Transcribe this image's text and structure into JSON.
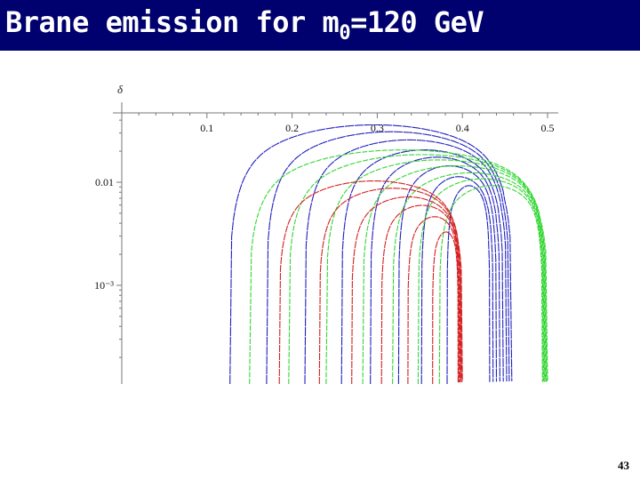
{
  "slide": {
    "title_prefix": "Brane emission for m",
    "title_subscript": "0",
    "title_suffix": "=120 GeV",
    "page_number": "43"
  },
  "colors": {
    "title_bar": "#00006e",
    "blue": "#1f1fbf",
    "green": "#33d633",
    "red": "#d42020"
  },
  "chart_data": {
    "type": "line",
    "ylabel": "δ",
    "y_scale": "log",
    "x_ticks": [
      "0.1",
      "0.2",
      "0.3",
      "0.4",
      "0.5"
    ],
    "y_ticks": [
      "0.01",
      "10⁻³"
    ],
    "grid": false,
    "series": [
      {
        "group": "blue",
        "x_start": 0.127,
        "x_end": 0.458,
        "y_peak": 0.035
      },
      {
        "group": "blue",
        "x_start": 0.17,
        "x_end": 0.455,
        "y_peak": 0.03
      },
      {
        "group": "blue",
        "x_start": 0.215,
        "x_end": 0.452,
        "y_peak": 0.025
      },
      {
        "group": "blue",
        "x_start": 0.258,
        "x_end": 0.448,
        "y_peak": 0.02
      },
      {
        "group": "blue",
        "x_start": 0.292,
        "x_end": 0.444,
        "y_peak": 0.017
      },
      {
        "group": "blue",
        "x_start": 0.325,
        "x_end": 0.44,
        "y_peak": 0.014
      },
      {
        "group": "blue",
        "x_start": 0.352,
        "x_end": 0.436,
        "y_peak": 0.011
      },
      {
        "group": "blue",
        "x_start": 0.382,
        "x_end": 0.432,
        "y_peak": 0.009
      },
      {
        "group": "green",
        "x_start": 0.15,
        "x_end": 0.5,
        "y_peak": 0.02
      },
      {
        "group": "green",
        "x_start": 0.196,
        "x_end": 0.499,
        "y_peak": 0.018
      },
      {
        "group": "green",
        "x_start": 0.24,
        "x_end": 0.498,
        "y_peak": 0.016
      },
      {
        "group": "green",
        "x_start": 0.283,
        "x_end": 0.497,
        "y_peak": 0.014
      },
      {
        "group": "green",
        "x_start": 0.318,
        "x_end": 0.496,
        "y_peak": 0.012
      },
      {
        "group": "green",
        "x_start": 0.348,
        "x_end": 0.495,
        "y_peak": 0.0105
      },
      {
        "group": "green",
        "x_start": 0.373,
        "x_end": 0.494,
        "y_peak": 0.009
      },
      {
        "group": "red",
        "x_start": 0.185,
        "x_end": 0.4,
        "y_peak": 0.01
      },
      {
        "group": "red",
        "x_start": 0.232,
        "x_end": 0.399,
        "y_peak": 0.0085
      },
      {
        "group": "red",
        "x_start": 0.27,
        "x_end": 0.398,
        "y_peak": 0.007
      },
      {
        "group": "red",
        "x_start": 0.305,
        "x_end": 0.397,
        "y_peak": 0.0058
      },
      {
        "group": "red",
        "x_start": 0.336,
        "x_end": 0.396,
        "y_peak": 0.0045
      },
      {
        "group": "red",
        "x_start": 0.365,
        "x_end": 0.395,
        "y_peak": 0.0032
      }
    ]
  }
}
